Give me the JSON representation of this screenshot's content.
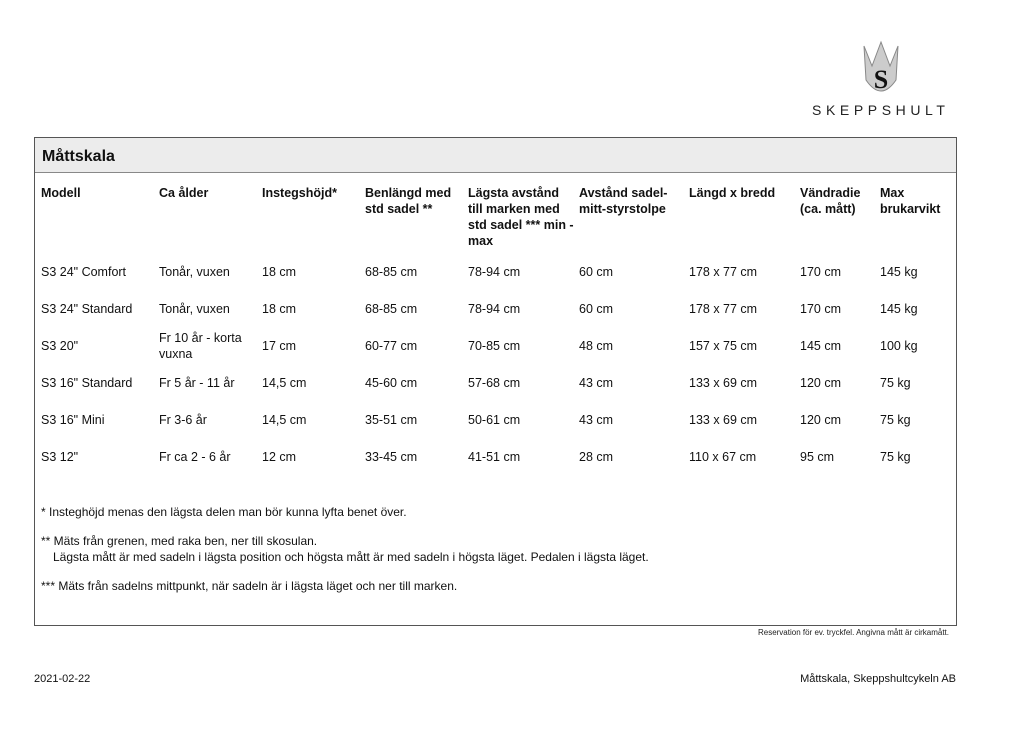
{
  "logo": {
    "text": "SKEPPSHULT"
  },
  "title": "Måttskala",
  "headers": [
    "Modell",
    "Ca ålder",
    "Instegshöjd*",
    "Benlängd med std sadel **",
    "Lägsta avstånd till marken med std sadel *** min - max",
    "Avstånd sadel-mitt-styrstolpe",
    "Längd x bredd",
    "Vändradie (ca. mått)",
    "Max brukarvikt"
  ],
  "rows": [
    [
      "S3 24\" Comfort",
      "Tonår, vuxen",
      "18 cm",
      "68-85 cm",
      "78-94 cm",
      "60 cm",
      "178 x 77 cm",
      "170 cm",
      "145 kg"
    ],
    [
      "S3 24\" Standard",
      "Tonår, vuxen",
      "18 cm",
      "68-85 cm",
      "78-94 cm",
      "60 cm",
      "178 x 77 cm",
      "170 cm",
      "145 kg"
    ],
    [
      "S3 20\"",
      "Fr 10 år - korta vuxna",
      "17 cm",
      "60-77 cm",
      "70-85 cm",
      "48 cm",
      "157 x 75 cm",
      "145 cm",
      "100 kg"
    ],
    [
      "S3 16\" Standard",
      "Fr 5 år - 11 år",
      "14,5 cm",
      "45-60 cm",
      "57-68 cm",
      "43 cm",
      "133 x 69 cm",
      "120 cm",
      "75 kg"
    ],
    [
      "S3 16\" Mini",
      "Fr 3-6 år",
      "14,5 cm",
      "35-51 cm",
      "50-61 cm",
      "43 cm",
      "133 x 69 cm",
      "120 cm",
      "75 kg"
    ],
    [
      "S3 12\"",
      "Fr ca 2 - 6 år",
      "12 cm",
      "33-45 cm",
      "41-51 cm",
      "28 cm",
      "110 x 67 cm",
      "95 cm",
      "75 kg"
    ]
  ],
  "notes": [
    "* Insteghöjd menas den lägsta delen man bör kunna lyfta benet över.",
    "** Mäts från grenen, med raka ben, ner till skosulan.",
    "Lägsta mått är med sadeln i lägsta position och högsta mått är med sadeln i högsta läget. Pedalen i lägsta läget.",
    "*** Mäts från sadelns mittpunkt, när sadeln är i lägsta läget och ner till marken."
  ],
  "disclaimer": "Reservation för ev. tryckfel.  Angivna mått är cirkamått.",
  "footer": {
    "date": "2021-02-22",
    "company": "Måttskala, Skeppshultcykeln AB"
  }
}
